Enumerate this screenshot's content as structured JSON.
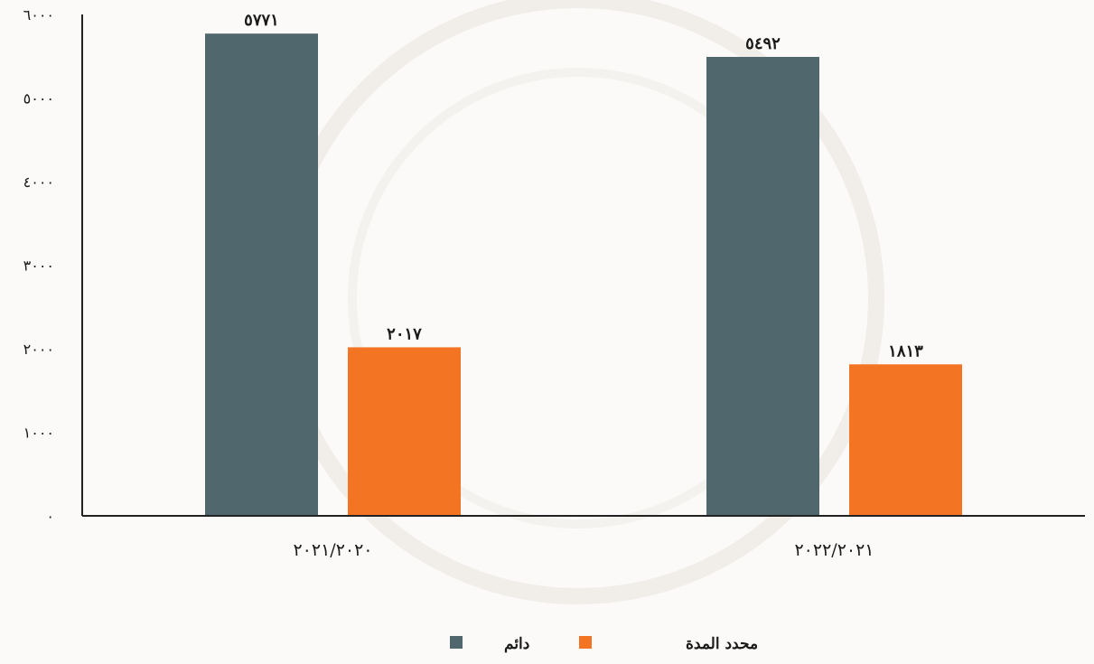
{
  "chart_data": {
    "type": "bar",
    "categories": [
      "٢٠٢١/٢٠٢٠",
      "٢٠٢٢/٢٠٢١"
    ],
    "series": [
      {
        "name": "دائم",
        "values": [
          5771,
          5492
        ],
        "value_labels": [
          "٥٧٧١",
          "٥٤٩٢"
        ],
        "color": "#50686d"
      },
      {
        "name": "محدد المدة",
        "values": [
          2017,
          1813
        ],
        "value_labels": [
          "٢٠١٧",
          "١٨١٣"
        ],
        "color": "#f37423"
      }
    ],
    "ylim": [
      0,
      6000
    ],
    "yticks": [
      0,
      1000,
      2000,
      3000,
      4000,
      5000,
      6000
    ],
    "ytick_labels": [
      "٠",
      "١٠٠٠",
      "٢٠٠٠",
      "٣٠٠٠",
      "٤٠٠٠",
      "٥٠٠٠",
      "٦٠٠٠"
    ],
    "title": "",
    "xlabel": "",
    "ylabel": "",
    "grid": false,
    "legend_position": "bottom-center",
    "axis_color": "#222222",
    "background": "#fbfaf8"
  }
}
